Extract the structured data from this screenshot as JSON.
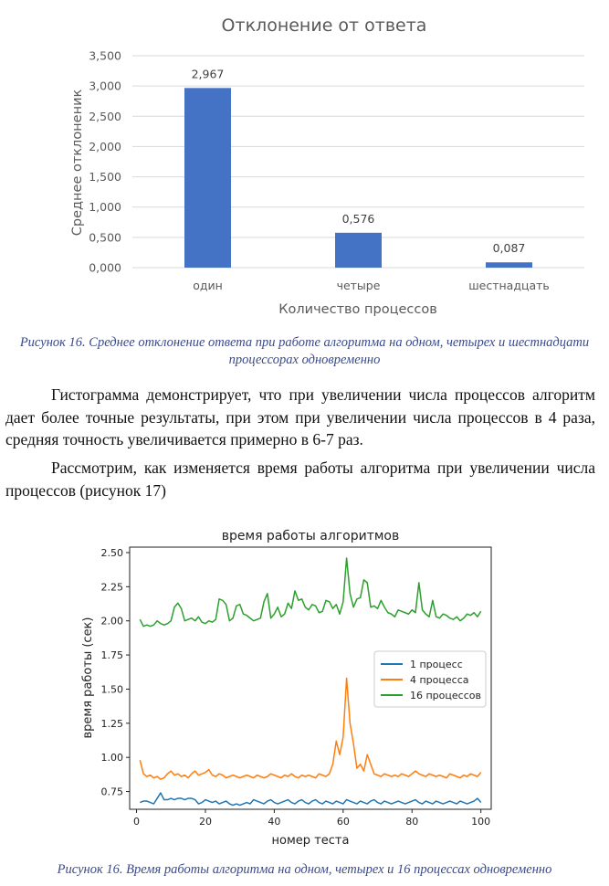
{
  "charts": {
    "bar": {
      "type": "bar",
      "title": "Отклонение от ответа",
      "xlabel": "Количество процессов",
      "ylabel": "Среднее отклоненик",
      "categories": [
        "один",
        "четыре",
        "шестнадцать"
      ],
      "values": [
        2.967,
        0.576,
        0.087
      ],
      "data_labels": [
        "2,967",
        "0,576",
        "0,087"
      ],
      "ylim": [
        0,
        3.5
      ],
      "yticks": [
        0,
        0.5,
        1.0,
        1.5,
        2.0,
        2.5,
        3.0,
        3.5
      ],
      "ytick_labels": [
        "0,000",
        "0,500",
        "1,000",
        "1,500",
        "2,000",
        "2,500",
        "3,000",
        "3,500"
      ],
      "grid": true,
      "bar_color": "#4472c4"
    },
    "line": {
      "type": "line",
      "title": "время работы алгоритмов",
      "xlabel": "номер теста",
      "ylabel": "время работы (сек)",
      "xlim": [
        -2,
        103
      ],
      "ylim": [
        0.62,
        2.54
      ],
      "xticks": [
        0,
        20,
        40,
        60,
        80,
        100
      ],
      "yticks": [
        0.75,
        1.0,
        1.25,
        1.5,
        1.75,
        2.0,
        2.25,
        2.5
      ],
      "ytick_labels": [
        "0.75",
        "1.00",
        "1.25",
        "1.50",
        "1.75",
        "2.00",
        "2.25",
        "2.50"
      ],
      "legend_position": "center-right",
      "grid": false,
      "series": [
        {
          "name": "1 процесс",
          "color": "#1f77b4",
          "x_start": 1,
          "values": [
            0.67,
            0.68,
            0.68,
            0.67,
            0.66,
            0.7,
            0.74,
            0.69,
            0.69,
            0.7,
            0.69,
            0.7,
            0.7,
            0.69,
            0.7,
            0.7,
            0.69,
            0.66,
            0.67,
            0.69,
            0.68,
            0.67,
            0.68,
            0.66,
            0.67,
            0.68,
            0.66,
            0.65,
            0.66,
            0.65,
            0.66,
            0.67,
            0.66,
            0.69,
            0.68,
            0.67,
            0.66,
            0.68,
            0.69,
            0.67,
            0.66,
            0.67,
            0.68,
            0.69,
            0.67,
            0.66,
            0.68,
            0.69,
            0.67,
            0.66,
            0.68,
            0.69,
            0.67,
            0.66,
            0.68,
            0.67,
            0.66,
            0.68,
            0.67,
            0.66,
            0.69,
            0.68,
            0.67,
            0.66,
            0.68,
            0.67,
            0.66,
            0.68,
            0.69,
            0.67,
            0.66,
            0.68,
            0.67,
            0.66,
            0.67,
            0.68,
            0.67,
            0.66,
            0.67,
            0.68,
            0.69,
            0.67,
            0.66,
            0.68,
            0.67,
            0.66,
            0.68,
            0.67,
            0.66,
            0.67,
            0.68,
            0.67,
            0.66,
            0.68,
            0.67,
            0.66,
            0.67,
            0.68,
            0.7,
            0.67
          ]
        },
        {
          "name": "4 процесса",
          "color": "#ff7f0e",
          "x_start": 1,
          "values": [
            0.98,
            0.88,
            0.86,
            0.87,
            0.85,
            0.86,
            0.84,
            0.85,
            0.88,
            0.9,
            0.87,
            0.88,
            0.86,
            0.87,
            0.85,
            0.88,
            0.9,
            0.87,
            0.88,
            0.89,
            0.91,
            0.87,
            0.86,
            0.88,
            0.87,
            0.85,
            0.86,
            0.87,
            0.86,
            0.85,
            0.86,
            0.87,
            0.86,
            0.85,
            0.87,
            0.86,
            0.85,
            0.86,
            0.88,
            0.87,
            0.86,
            0.85,
            0.87,
            0.86,
            0.88,
            0.86,
            0.85,
            0.87,
            0.86,
            0.87,
            0.86,
            0.85,
            0.88,
            0.87,
            0.86,
            0.88,
            0.95,
            1.12,
            1.02,
            1.15,
            1.58,
            1.25,
            1.1,
            0.92,
            0.95,
            0.9,
            1.02,
            0.95,
            0.88,
            0.87,
            0.86,
            0.88,
            0.87,
            0.86,
            0.87,
            0.86,
            0.88,
            0.87,
            0.86,
            0.88,
            0.9,
            0.88,
            0.87,
            0.86,
            0.88,
            0.87,
            0.86,
            0.87,
            0.86,
            0.85,
            0.88,
            0.87,
            0.86,
            0.85,
            0.87,
            0.86,
            0.88,
            0.87,
            0.86,
            0.89
          ]
        },
        {
          "name": "16 процессов",
          "color": "#2ca02c",
          "x_start": 1,
          "values": [
            2.01,
            1.96,
            1.97,
            1.96,
            1.97,
            2.0,
            1.98,
            1.97,
            1.98,
            2.0,
            2.1,
            2.13,
            2.09,
            2.0,
            2.01,
            2.02,
            2.0,
            2.03,
            1.99,
            1.98,
            2.0,
            1.99,
            2.01,
            2.16,
            2.15,
            2.12,
            2.0,
            2.02,
            2.11,
            2.12,
            2.05,
            2.04,
            2.02,
            2.0,
            2.01,
            2.02,
            2.14,
            2.2,
            2.02,
            2.05,
            2.1,
            2.03,
            2.05,
            2.13,
            2.09,
            2.22,
            2.15,
            2.16,
            2.1,
            2.08,
            2.12,
            2.11,
            2.06,
            2.07,
            2.15,
            2.14,
            2.09,
            2.12,
            2.05,
            2.14,
            2.46,
            2.2,
            2.1,
            2.16,
            2.17,
            2.3,
            2.28,
            2.1,
            2.11,
            2.09,
            2.15,
            2.1,
            2.06,
            2.05,
            2.03,
            2.08,
            2.07,
            2.06,
            2.05,
            2.08,
            2.06,
            2.28,
            2.08,
            2.05,
            2.03,
            2.15,
            2.03,
            2.02,
            2.05,
            2.04,
            2.02,
            2.01,
            2.03,
            2.0,
            2.02,
            2.05,
            2.04,
            2.06,
            2.03,
            2.07
          ]
        }
      ]
    }
  },
  "captions": {
    "fig1": "Рисунок 16. Среднее отклонение ответа при работе алгоритма на одном, четырех и шестнадцати процессорах одновременно",
    "fig2": "Рисунок 16. Время работы алгоритма на одном, четырех и 16 процессах одновременно"
  },
  "paragraphs": {
    "p1": "Гистограмма демонстрирует, что при увеличении числа процессов алгоритм дает более точные результаты, при этом при увеличении числа процессов в 4 раза, средняя точность увеличивается примерно в 6-7 раз.",
    "p2": "Рассмотрим, как изменяется время работы алгоритма при увеличении числа процессов (рисунок 17)"
  }
}
